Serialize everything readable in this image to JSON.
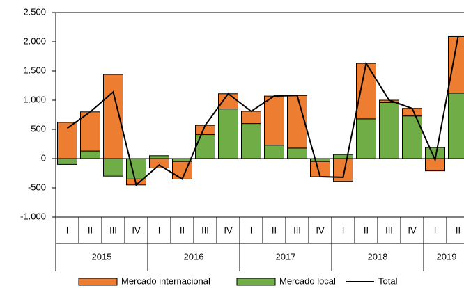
{
  "chart_data": {
    "type": "bar",
    "stacked": true,
    "categories": [
      "I",
      "II",
      "III",
      "IV",
      "I",
      "II",
      "III",
      "IV",
      "I",
      "II",
      "III",
      "IV",
      "I",
      "II",
      "III",
      "IV",
      "I",
      "II"
    ],
    "years": [
      "2015",
      "2016",
      "2017",
      "2018",
      "2019"
    ],
    "series": [
      {
        "name": "Mercado internacional",
        "color": "#ed7d31",
        "values": [
          620,
          670,
          1440,
          -100,
          -160,
          -300,
          160,
          260,
          210,
          840,
          900,
          -260,
          -390,
          950,
          40,
          130,
          -210,
          970
        ]
      },
      {
        "name": "Mercado local",
        "color": "#70ad47",
        "values": [
          -100,
          130,
          -300,
          -350,
          50,
          -50,
          410,
          850,
          600,
          230,
          180,
          -50,
          70,
          680,
          960,
          730,
          190,
          1120
        ]
      },
      {
        "name": "Total",
        "type": "line",
        "color": "#000000",
        "values": [
          520,
          800,
          1140,
          -450,
          -110,
          -350,
          570,
          1110,
          810,
          1070,
          1080,
          -310,
          -320,
          1630,
          1000,
          860,
          -20,
          2090
        ]
      }
    ],
    "ylim": [
      -1000,
      2500
    ],
    "yticks": [
      {
        "value": -1000,
        "label": "-1.000"
      },
      -500,
      0,
      500,
      {
        "value": 1000,
        "label": "1.000"
      },
      {
        "value": 1500,
        "label": "1.500"
      },
      {
        "value": 2000,
        "label": "2.000"
      },
      {
        "value": 2500,
        "label": "2.500"
      }
    ],
    "grid": false
  }
}
